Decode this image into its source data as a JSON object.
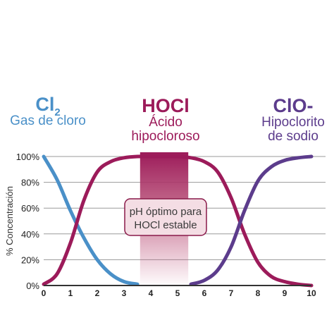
{
  "colors": {
    "cl2": "#4a90c8",
    "hocl": "#9c1b5a",
    "clo": "#5c3c8c",
    "grid": "#9a9a9a",
    "axis": "#333333",
    "band": "#9c1b5a",
    "callout_fill": "#f4dde4",
    "callout_stroke": "#8a1a4a"
  },
  "species": {
    "cl2": {
      "name_main": "Cl",
      "name_sub": "2",
      "desc": "Gas de cloro"
    },
    "hocl": {
      "name": "HOCl",
      "desc_line1": "Ácido",
      "desc_line2": "hipocloroso"
    },
    "clo": {
      "name": "ClO-",
      "desc_line1": "Hipoclorito",
      "desc_line2": "de sodio"
    }
  },
  "chart_data": {
    "type": "line",
    "xlabel": "",
    "ylabel": "% Concentración",
    "xlim": [
      0,
      10
    ],
    "ylim": [
      0,
      100
    ],
    "x_ticks": [
      "0",
      "1",
      "2",
      "3",
      "4",
      "5",
      "6",
      "7",
      "8",
      "9",
      "10"
    ],
    "y_ticks": [
      "0%",
      "20%",
      "40%",
      "60%",
      "80%",
      "100%"
    ],
    "grid": true,
    "series": [
      {
        "name": "Cl2",
        "x": [
          0,
          0.5,
          1,
          1.5,
          2,
          2.5,
          3,
          3.5
        ],
        "y": [
          100,
          82,
          58,
          37,
          20,
          9,
          3,
          1
        ]
      },
      {
        "name": "HOCl",
        "x": [
          0,
          0.5,
          1,
          1.5,
          2,
          2.5,
          3,
          3.5,
          4,
          4.5,
          5,
          5.5,
          6,
          6.5,
          7,
          7.5,
          8,
          8.5,
          9,
          9.5,
          10
        ],
        "y": [
          1,
          9,
          33,
          66,
          88,
          96,
          99,
          100,
          100,
          100,
          100,
          99,
          96,
          88,
          68,
          40,
          18,
          7,
          3,
          1,
          0
        ]
      },
      {
        "name": "ClO-",
        "x": [
          5.5,
          6,
          6.5,
          7,
          7.5,
          8,
          8.5,
          9,
          9.5,
          10
        ],
        "y": [
          1,
          4,
          12,
          30,
          58,
          81,
          92,
          97,
          99,
          100
        ]
      }
    ],
    "band": {
      "x_start": 3.6,
      "x_end": 5.4
    },
    "annotation": {
      "line1": "pH óptimo para",
      "line2": "HOCl estable"
    }
  }
}
